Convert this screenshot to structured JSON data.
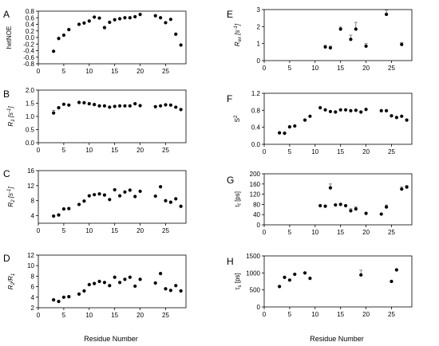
{
  "figure": {
    "x_axis_label": "Residue Number"
  },
  "chart_data": [
    {
      "id": "A",
      "type": "scatter",
      "panel_label": "A",
      "ylabel": "hetNOE",
      "xlim": [
        0,
        29
      ],
      "ylim": [
        -0.8,
        0.8
      ],
      "xticks": [
        0,
        5,
        10,
        15,
        20,
        25
      ],
      "yticks": [
        -0.8,
        -0.6,
        -0.4,
        -0.2,
        0.0,
        0.2,
        0.4,
        0.6,
        0.8
      ],
      "ytick_labels": [
        "-0.8",
        "-0.6",
        "-0.4",
        "-0.2",
        "0.0",
        "0.2",
        "0.4",
        "0.6",
        "0.8"
      ],
      "x": [
        3,
        4,
        5,
        6,
        8,
        9,
        10,
        11,
        12,
        13,
        14,
        15,
        16,
        17,
        18,
        19,
        20,
        23,
        24,
        25,
        26,
        27,
        28
      ],
      "y": [
        -0.42,
        -0.03,
        0.07,
        0.24,
        0.4,
        0.44,
        0.5,
        0.62,
        0.59,
        0.3,
        0.46,
        0.54,
        0.57,
        0.6,
        0.6,
        0.63,
        0.7,
        0.66,
        0.6,
        0.45,
        0.55,
        0.1,
        -0.23
      ]
    },
    {
      "id": "B",
      "type": "scatter",
      "panel_label": "B",
      "ylabel": "R1 [s-1]",
      "xlim": [
        0,
        29
      ],
      "ylim": [
        0.0,
        2.0
      ],
      "xticks": [
        0,
        5,
        10,
        15,
        20,
        25
      ],
      "yticks": [
        0.0,
        0.5,
        1.0,
        1.5,
        2.0
      ],
      "ytick_labels": [
        "0.0",
        "0.5",
        "1.0",
        "1.5",
        "2.0"
      ],
      "x": [
        3,
        4,
        5,
        6,
        8,
        9,
        10,
        11,
        12,
        13,
        14,
        15,
        16,
        17,
        18,
        19,
        20,
        23,
        24,
        25,
        26,
        27,
        28
      ],
      "y": [
        1.13,
        1.33,
        1.46,
        1.43,
        1.53,
        1.52,
        1.48,
        1.45,
        1.4,
        1.4,
        1.35,
        1.38,
        1.4,
        1.4,
        1.4,
        1.48,
        1.41,
        1.37,
        1.4,
        1.44,
        1.43,
        1.35,
        1.26
      ],
      "err": [
        0.1,
        0,
        0,
        0,
        0,
        0,
        0,
        0,
        0,
        0,
        0,
        0,
        0,
        0,
        0,
        0,
        0,
        0,
        0,
        0,
        0,
        0,
        0
      ]
    },
    {
      "id": "C",
      "type": "scatter",
      "panel_label": "C",
      "ylabel": "R2 [s-1]",
      "xlim": [
        0,
        29
      ],
      "ylim": [
        2,
        16
      ],
      "xticks": [
        0,
        5,
        10,
        15,
        20,
        25
      ],
      "yticks": [
        4,
        8,
        12,
        16
      ],
      "ytick_labels": [
        "4",
        "8",
        "12",
        "16"
      ],
      "x": [
        3,
        4,
        5,
        6,
        8,
        9,
        10,
        11,
        12,
        13,
        14,
        15,
        16,
        17,
        18,
        19,
        20,
        23,
        24,
        25,
        26,
        27,
        28
      ],
      "y": [
        3.9,
        4.2,
        5.8,
        5.9,
        7.0,
        7.9,
        9.3,
        9.6,
        9.8,
        9.5,
        8.3,
        10.9,
        9.3,
        10.3,
        10.8,
        9.1,
        10.5,
        9.2,
        11.7,
        8.0,
        7.6,
        8.5,
        6.5
      ]
    },
    {
      "id": "D",
      "type": "scatter",
      "panel_label": "D",
      "ylabel": "R2/R1",
      "xlim": [
        0,
        29
      ],
      "ylim": [
        2,
        12
      ],
      "xticks": [
        0,
        5,
        10,
        15,
        20,
        25
      ],
      "yticks": [
        2,
        4,
        6,
        8,
        10,
        12
      ],
      "ytick_labels": [
        "2",
        "4",
        "6",
        "8",
        "10",
        "12"
      ],
      "x": [
        3,
        4,
        5,
        6,
        8,
        9,
        10,
        11,
        12,
        13,
        14,
        15,
        16,
        17,
        18,
        19,
        20,
        23,
        24,
        25,
        26,
        27,
        28
      ],
      "y": [
        3.5,
        3.2,
        4.0,
        4.1,
        4.6,
        5.2,
        6.4,
        6.6,
        7.0,
        6.8,
        6.2,
        7.8,
        6.8,
        7.4,
        7.8,
        6.1,
        7.4,
        6.7,
        8.5,
        5.6,
        5.3,
        6.2,
        5.2
      ]
    },
    {
      "id": "E",
      "type": "scatter",
      "panel_label": "E",
      "ylabel": "Rex [s-1]",
      "xlim": [
        0,
        29
      ],
      "ylim": [
        0,
        3
      ],
      "xticks": [
        0,
        5,
        10,
        15,
        20,
        25
      ],
      "yticks": [
        0,
        1,
        2,
        3
      ],
      "ytick_labels": [
        "0",
        "1",
        "2",
        "3"
      ],
      "x": [
        12,
        13,
        15,
        17,
        18,
        20,
        24,
        27
      ],
      "y": [
        0.8,
        0.75,
        1.85,
        1.25,
        1.85,
        0.85,
        2.72,
        0.95
      ],
      "err": [
        0.1,
        0.1,
        0.12,
        0.25,
        0.4,
        0.15,
        0.25,
        0.1
      ]
    },
    {
      "id": "F",
      "type": "scatter",
      "panel_label": "F",
      "ylabel": "S2",
      "xlim": [
        0,
        29
      ],
      "ylim": [
        0.0,
        1.2
      ],
      "xticks": [
        0,
        5,
        10,
        15,
        20,
        25
      ],
      "yticks": [
        0.0,
        0.4,
        0.8,
        1.2
      ],
      "ytick_labels": [
        "0.0",
        "0.4",
        "0.8",
        "1.2"
      ],
      "x": [
        3,
        4,
        5,
        6,
        8,
        9,
        11,
        12,
        13,
        14,
        15,
        16,
        17,
        18,
        19,
        20,
        23,
        24,
        25,
        26,
        27,
        28
      ],
      "y": [
        0.27,
        0.26,
        0.41,
        0.43,
        0.57,
        0.66,
        0.86,
        0.81,
        0.77,
        0.76,
        0.81,
        0.81,
        0.79,
        0.8,
        0.76,
        0.82,
        0.79,
        0.79,
        0.67,
        0.63,
        0.66,
        0.57
      ]
    },
    {
      "id": "G",
      "type": "scatter",
      "panel_label": "G",
      "ylabel": "τf [ps]",
      "xlim": [
        0,
        29
      ],
      "ylim": [
        0,
        200
      ],
      "xticks": [
        0,
        5,
        10,
        15,
        20,
        25
      ],
      "yticks": [
        0,
        40,
        80,
        120,
        160,
        200
      ],
      "ytick_labels": [
        "0",
        "40",
        "80",
        "120",
        "160",
        "200"
      ],
      "x": [
        11,
        12,
        13,
        14,
        15,
        16,
        17,
        18,
        20,
        23,
        24,
        27,
        28
      ],
      "y": [
        75,
        73,
        145,
        78,
        80,
        75,
        55,
        62,
        45,
        42,
        70,
        140,
        148
      ],
      "err": [
        0,
        0,
        15,
        0,
        0,
        0,
        8,
        8,
        0,
        0,
        8,
        8,
        6
      ]
    },
    {
      "id": "H",
      "type": "scatter",
      "panel_label": "H",
      "ylabel": "τs [ps]",
      "xlim": [
        0,
        29
      ],
      "ylim": [
        0,
        1500
      ],
      "xticks": [
        0,
        5,
        10,
        15,
        20,
        25
      ],
      "yticks": [
        0,
        500,
        1000,
        1500
      ],
      "ytick_labels": [
        "0",
        "500",
        "1000",
        "1500"
      ],
      "x": [
        3,
        4,
        5,
        6,
        8,
        9,
        19,
        25,
        26
      ],
      "y": [
        600,
        870,
        790,
        960,
        1000,
        840,
        940,
        750,
        1090
      ],
      "err": [
        0,
        0,
        0,
        0,
        0,
        0,
        140,
        0,
        0
      ]
    }
  ]
}
